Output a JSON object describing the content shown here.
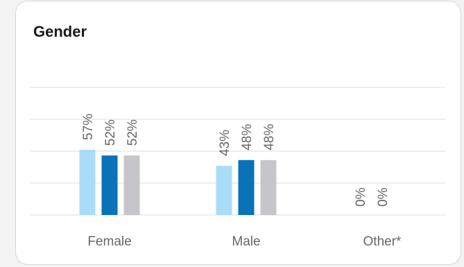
{
  "card": {
    "title": "Gender"
  },
  "chart_data": {
    "type": "bar",
    "title": "Gender",
    "categories": [
      "Female",
      "Male",
      "Other*"
    ],
    "series": [
      {
        "values": [
          57,
          43,
          0
        ],
        "labels": [
          "57%",
          "43%",
          "0%"
        ],
        "color": "#a9dcf8"
      },
      {
        "values": [
          52,
          48,
          0
        ],
        "labels": [
          "52%",
          "48%",
          "0%"
        ],
        "color": "#0a72b6"
      },
      {
        "values": [
          52,
          48,
          null
        ],
        "labels": [
          "52%",
          "48%",
          null
        ],
        "color": "#c6c5c9"
      }
    ],
    "ylim": [
      0,
      100
    ],
    "grid": true,
    "legend": "none"
  }
}
